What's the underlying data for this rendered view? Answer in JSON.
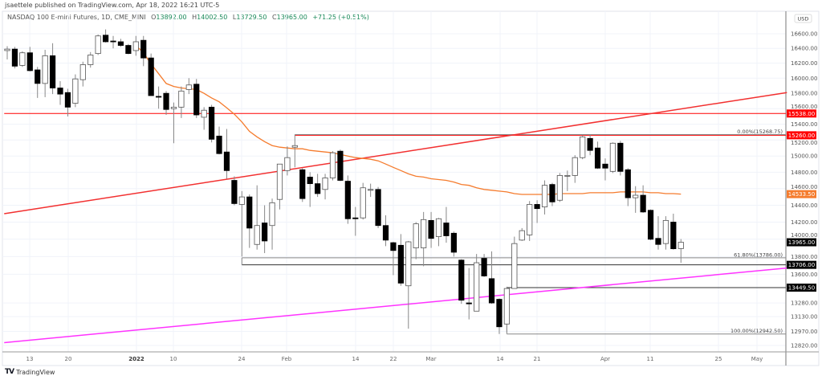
{
  "header": {
    "publisher": "jsaettele published on TradingView.com, Apr 18, 2022 16:21 UTC-5",
    "symbol": "NASDAQ 100 E-mini Futures, 1D, CME_MINI",
    "open_label": "O",
    "open": "13892.00",
    "high_label": "H",
    "high": "14002.50",
    "low_label": "L",
    "low": "13729.50",
    "close_label": "C",
    "close": "13965.00",
    "change": "+71.25 (+0.51%)"
  },
  "footer": {
    "brand": "TradingView",
    "logo_text": "TV"
  },
  "colors": {
    "bull": "#ffffff",
    "bear": "#000000",
    "ma": "#f57c2e",
    "trend_red": "#f23030",
    "trend_magenta": "#ff33ff",
    "level_red": "#ff0000",
    "level_dark": "#333333",
    "fib": "#888888",
    "legend_green": "#1b8a5a"
  },
  "chart_data": {
    "type": "candlestick",
    "title": "NASDAQ 100 E-mini Futures, 1D, CME_MINI",
    "y_scale": "log",
    "currency": "USD",
    "ylim": [
      12760,
      16900
    ],
    "grid": true,
    "y_ticks": [
      "16600.00",
      "16400.00",
      "16200.00",
      "16000.00",
      "15800.00",
      "15600.00",
      "15400.00",
      "15200.00",
      "15000.00",
      "14800.00",
      "14600.00",
      "14400.00",
      "14200.00",
      "14000.00",
      "13800.00",
      "13600.00",
      "13280.00",
      "13130.00",
      "12970.00",
      "12820.00"
    ],
    "x_ticks": [
      "13",
      "20",
      "2022",
      "10",
      "24",
      "Feb",
      "14",
      "22",
      "Mar",
      "14",
      "21",
      "Apr",
      "11",
      "25",
      "May"
    ],
    "ohlc": [
      [
        16370,
        16430,
        16250,
        16390
      ],
      [
        16390,
        16420,
        16130,
        16160
      ],
      [
        16170,
        16360,
        16150,
        16340
      ],
      [
        16340,
        16420,
        16090,
        16100
      ],
      [
        16110,
        16150,
        15740,
        15930
      ],
      [
        15930,
        16380,
        15750,
        16300
      ],
      [
        16300,
        16470,
        15790,
        15870
      ],
      [
        15870,
        15960,
        15650,
        15790
      ],
      [
        15810,
        15860,
        15500,
        15620
      ],
      [
        15670,
        16050,
        15620,
        15990
      ],
      [
        15980,
        16220,
        15890,
        16180
      ],
      [
        16180,
        16350,
        16140,
        16310
      ],
      [
        16330,
        16590,
        16310,
        16570
      ],
      [
        16580,
        16660,
        16480,
        16490
      ],
      [
        16500,
        16570,
        16400,
        16490
      ],
      [
        16490,
        16530,
        16420,
        16440
      ],
      [
        16440,
        16460,
        16320,
        16330
      ],
      [
        16370,
        16570,
        16300,
        16490
      ],
      [
        16510,
        16570,
        16160,
        16270
      ],
      [
        16270,
        16330,
        15770,
        15770
      ],
      [
        15760,
        15890,
        15600,
        15750
      ],
      [
        15800,
        15830,
        15520,
        15590
      ],
      [
        15600,
        15680,
        15160,
        15620
      ],
      [
        15620,
        15890,
        15480,
        15830
      ],
      [
        15850,
        16000,
        15790,
        15910
      ],
      [
        15920,
        15990,
        15480,
        15520
      ],
      [
        15490,
        15620,
        15330,
        15580
      ],
      [
        15620,
        15650,
        15170,
        15210
      ],
      [
        15250,
        15370,
        15020,
        15030
      ],
      [
        15050,
        15340,
        14720,
        14820
      ],
      [
        14700,
        14750,
        14400,
        14420
      ],
      [
        14410,
        14570,
        13800,
        14500
      ],
      [
        14500,
        14530,
        13900,
        14130
      ],
      [
        13940,
        14640,
        13880,
        14160
      ],
      [
        14190,
        14400,
        13840,
        13980
      ],
      [
        14160,
        14480,
        13880,
        14430
      ],
      [
        14470,
        14900,
        14350,
        14900
      ],
      [
        14820,
        15120,
        14760,
        14980
      ],
      [
        15110,
        15268.75,
        14860,
        15130
      ],
      [
        14830,
        14850,
        14440,
        14480
      ],
      [
        14740,
        14800,
        14380,
        14660
      ],
      [
        14660,
        14780,
        14500,
        14540
      ],
      [
        14590,
        14780,
        14470,
        14730
      ],
      [
        14730,
        15060,
        14700,
        15040
      ],
      [
        15060,
        15080,
        14690,
        14700
      ],
      [
        14690,
        14760,
        14180,
        14240
      ],
      [
        14250,
        14380,
        14040,
        14240
      ],
      [
        14250,
        14670,
        14230,
        14610
      ],
      [
        14580,
        14660,
        14500,
        14590
      ],
      [
        14590,
        14620,
        14130,
        14160
      ],
      [
        14160,
        14280,
        13920,
        13990
      ],
      [
        13960,
        13970,
        13590,
        13870
      ],
      [
        13930,
        14060,
        13470,
        13500
      ],
      [
        13470,
        13980,
        13000,
        13970
      ],
      [
        13900,
        14200,
        13770,
        14180
      ],
      [
        13900,
        14320,
        13690,
        14230
      ],
      [
        14220,
        14320,
        13900,
        14010
      ],
      [
        14030,
        14250,
        13920,
        14240
      ],
      [
        14190,
        14380,
        13960,
        14040
      ],
      [
        14070,
        14090,
        13800,
        13850
      ],
      [
        13760,
        13770,
        13270,
        13310
      ],
      [
        13280,
        13670,
        13100,
        13270
      ],
      [
        13190,
        13830,
        13190,
        13730
      ],
      [
        13780,
        13830,
        13570,
        13580
      ],
      [
        13550,
        13860,
        13270,
        13280
      ],
      [
        13320,
        13330,
        12942.5,
        13020
      ],
      [
        13050,
        13460,
        12960,
        13440
      ],
      [
        13440,
        14030,
        13440,
        13950
      ],
      [
        13990,
        14130,
        13980,
        14100
      ],
      [
        14050,
        14450,
        13980,
        14410
      ],
      [
        14410,
        14460,
        14190,
        14360
      ],
      [
        14380,
        14700,
        14290,
        14640
      ],
      [
        14650,
        14670,
        14390,
        14440
      ],
      [
        14460,
        14790,
        14440,
        14760
      ],
      [
        14760,
        14820,
        14570,
        14760
      ],
      [
        14760,
        15010,
        14670,
        14980
      ],
      [
        14980,
        15260,
        14960,
        15240
      ],
      [
        15220,
        15270,
        15010,
        15070
      ],
      [
        15100,
        15180,
        14840,
        14850
      ],
      [
        14900,
        14970,
        14700,
        14850
      ],
      [
        14810,
        15170,
        14790,
        15160
      ],
      [
        15160,
        15190,
        14760,
        14810
      ],
      [
        14830,
        14850,
        14390,
        14490
      ],
      [
        14490,
        14630,
        14310,
        14520
      ],
      [
        14520,
        14640,
        14310,
        14320
      ],
      [
        14340,
        14350,
        13990,
        14000
      ],
      [
        14010,
        14270,
        13880,
        13940
      ],
      [
        13950,
        14270,
        13880,
        14220
      ],
      [
        14200,
        14300,
        13880,
        13890
      ],
      [
        13892,
        14002.5,
        13729.5,
        13965
      ]
    ],
    "moving_average": [
      null,
      null,
      null,
      null,
      null,
      null,
      null,
      null,
      null,
      null,
      null,
      null,
      null,
      null,
      null,
      null,
      null,
      16440,
      16340,
      16190,
      16060,
      15930,
      15890,
      15870,
      15860,
      15850,
      15800,
      15740,
      15690,
      15610,
      15530,
      15430,
      15310,
      15240,
      15180,
      15130,
      15110,
      15100,
      15090,
      15090,
      15070,
      15060,
      15050,
      15040,
      15020,
      15000,
      14980,
      14970,
      14960,
      14940,
      14900,
      14860,
      14820,
      14780,
      14750,
      14740,
      14720,
      14710,
      14700,
      14680,
      14650,
      14640,
      14610,
      14590,
      14580,
      14570,
      14560,
      14540,
      14530,
      14530,
      14530,
      14530,
      14530,
      14540,
      14540,
      14540,
      14540,
      14550,
      14550,
      14550,
      14550,
      14560,
      14560,
      14560,
      14560,
      14550,
      14550,
      14540,
      14540,
      14533.5
    ],
    "trendlines": [
      {
        "color": "trend_red",
        "from": {
          "bar": -0.4,
          "price": 14300
        },
        "to": {
          "bar": 103,
          "price": 15810
        }
      },
      {
        "color": "trend_magenta",
        "from": {
          "bar": -0.4,
          "price": 12850
        },
        "to": {
          "bar": 103,
          "price": 13670
        }
      }
    ],
    "horizontal_levels": [
      {
        "price": 15538,
        "from_bar": -0.4,
        "color": "level_red"
      },
      {
        "price": 15260,
        "from_bar": 38,
        "color": "level_red"
      },
      {
        "price": 13706,
        "from_bar": 31,
        "color": "level_dark"
      },
      {
        "price": 13449.5,
        "from_bar": 66,
        "color": "level_dark"
      }
    ],
    "fib_levels": [
      {
        "price": 15268.75,
        "from_bar": 38,
        "label": "0.00%(15268.75)"
      },
      {
        "price": 13786,
        "from_bar": 31,
        "label": "61.80%(13786.00)"
      },
      {
        "price": 12942.5,
        "from_bar": 66,
        "label": "100.00%(12942.50)"
      }
    ],
    "price_labels": [
      {
        "text": "15538.00",
        "price": 15538,
        "bg": "#ff0000"
      },
      {
        "text": "15260.00",
        "price": 15260,
        "bg": "#ff0000"
      },
      {
        "text": "14533.50",
        "price": 14533.5,
        "bg": "#f57c2e"
      },
      {
        "text": "13965.00",
        "price": 13965,
        "bg": "#000000"
      },
      {
        "text": "13706.00",
        "price": 13706,
        "bg": "#000000"
      },
      {
        "text": "13449.50",
        "price": 13449.5,
        "bg": "#000000"
      }
    ]
  }
}
